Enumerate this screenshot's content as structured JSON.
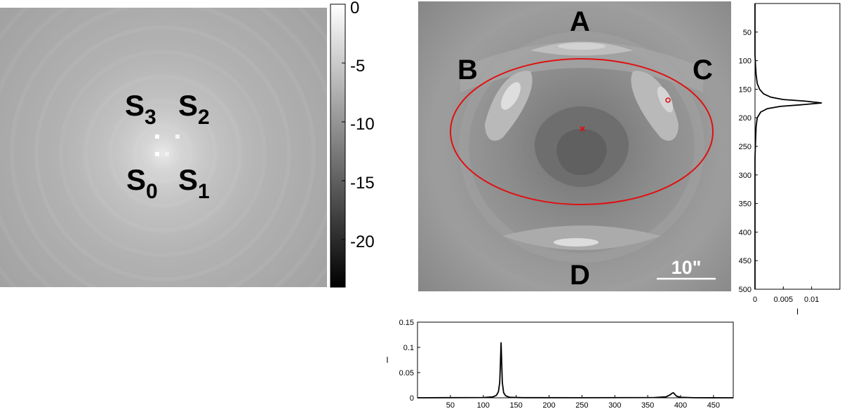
{
  "left_panel": {
    "source_labels": [
      {
        "letter": "S",
        "index": "3"
      },
      {
        "letter": "S",
        "index": "2"
      },
      {
        "letter": "S",
        "index": "0"
      },
      {
        "letter": "S",
        "index": "1"
      }
    ]
  },
  "colorbar": {
    "ticks": [
      "0",
      "-5",
      "-10",
      "-15",
      "-20"
    ],
    "range": [
      -24,
      0
    ]
  },
  "image_panel": {
    "quadrant_labels": [
      "A",
      "B",
      "C",
      "D"
    ],
    "scalebar_label": "10\""
  },
  "colors": {
    "ellipse": "#e01010",
    "marker": "#e01010",
    "line": "#000000"
  },
  "chart_data": [
    {
      "type": "line",
      "title": "",
      "xlabel": "I",
      "ylabel": "",
      "orientation": "vertical-profile",
      "xlim": [
        0,
        0.015
      ],
      "ylim": [
        0,
        500
      ],
      "y_inverted": true,
      "x_ticks": [
        "0",
        "0.005",
        "0.01"
      ],
      "y_ticks": [
        "50",
        "100",
        "150",
        "200",
        "250",
        "300",
        "350",
        "400",
        "450",
        "500"
      ],
      "series": [
        {
          "x": [
            0,
            0,
            0.0001,
            0.0002,
            0.0004,
            0.0008,
            0.0015,
            0.0028,
            0.005,
            0.009,
            0.0118,
            0.0085,
            0.0045,
            0.0022,
            0.001,
            0.0004,
            0.0002,
            0.0001,
            0,
            0
          ],
          "y": [
            0,
            90,
            110,
            125,
            140,
            150,
            158,
            164,
            168,
            171,
            174,
            177,
            180,
            184,
            190,
            200,
            215,
            240,
            270,
            500
          ]
        }
      ]
    },
    {
      "type": "line",
      "title": "",
      "xlabel": "",
      "ylabel": "I",
      "xlim": [
        0,
        480
      ],
      "ylim": [
        0,
        0.15
      ],
      "x_ticks": [
        "50",
        "100",
        "150",
        "200",
        "250",
        "300",
        "350",
        "400",
        "450"
      ],
      "y_ticks": [
        "0",
        "0.05",
        "0.1",
        "0.15"
      ],
      "series": [
        {
          "x": [
            0,
            100,
            115,
            120,
            123,
            125,
            126,
            127,
            128,
            129,
            131,
            134,
            140,
            160,
            250,
            360,
            378,
            384,
            387,
            389,
            391,
            394,
            400,
            420,
            480
          ],
          "y": [
            0,
            0.0005,
            0.002,
            0.005,
            0.012,
            0.03,
            0.065,
            0.11,
            0.07,
            0.03,
            0.01,
            0.004,
            0.001,
            0.0003,
            0.0002,
            0.0005,
            0.002,
            0.006,
            0.009,
            0.01,
            0.007,
            0.003,
            0.001,
            0.0002,
            0
          ]
        }
      ]
    }
  ]
}
